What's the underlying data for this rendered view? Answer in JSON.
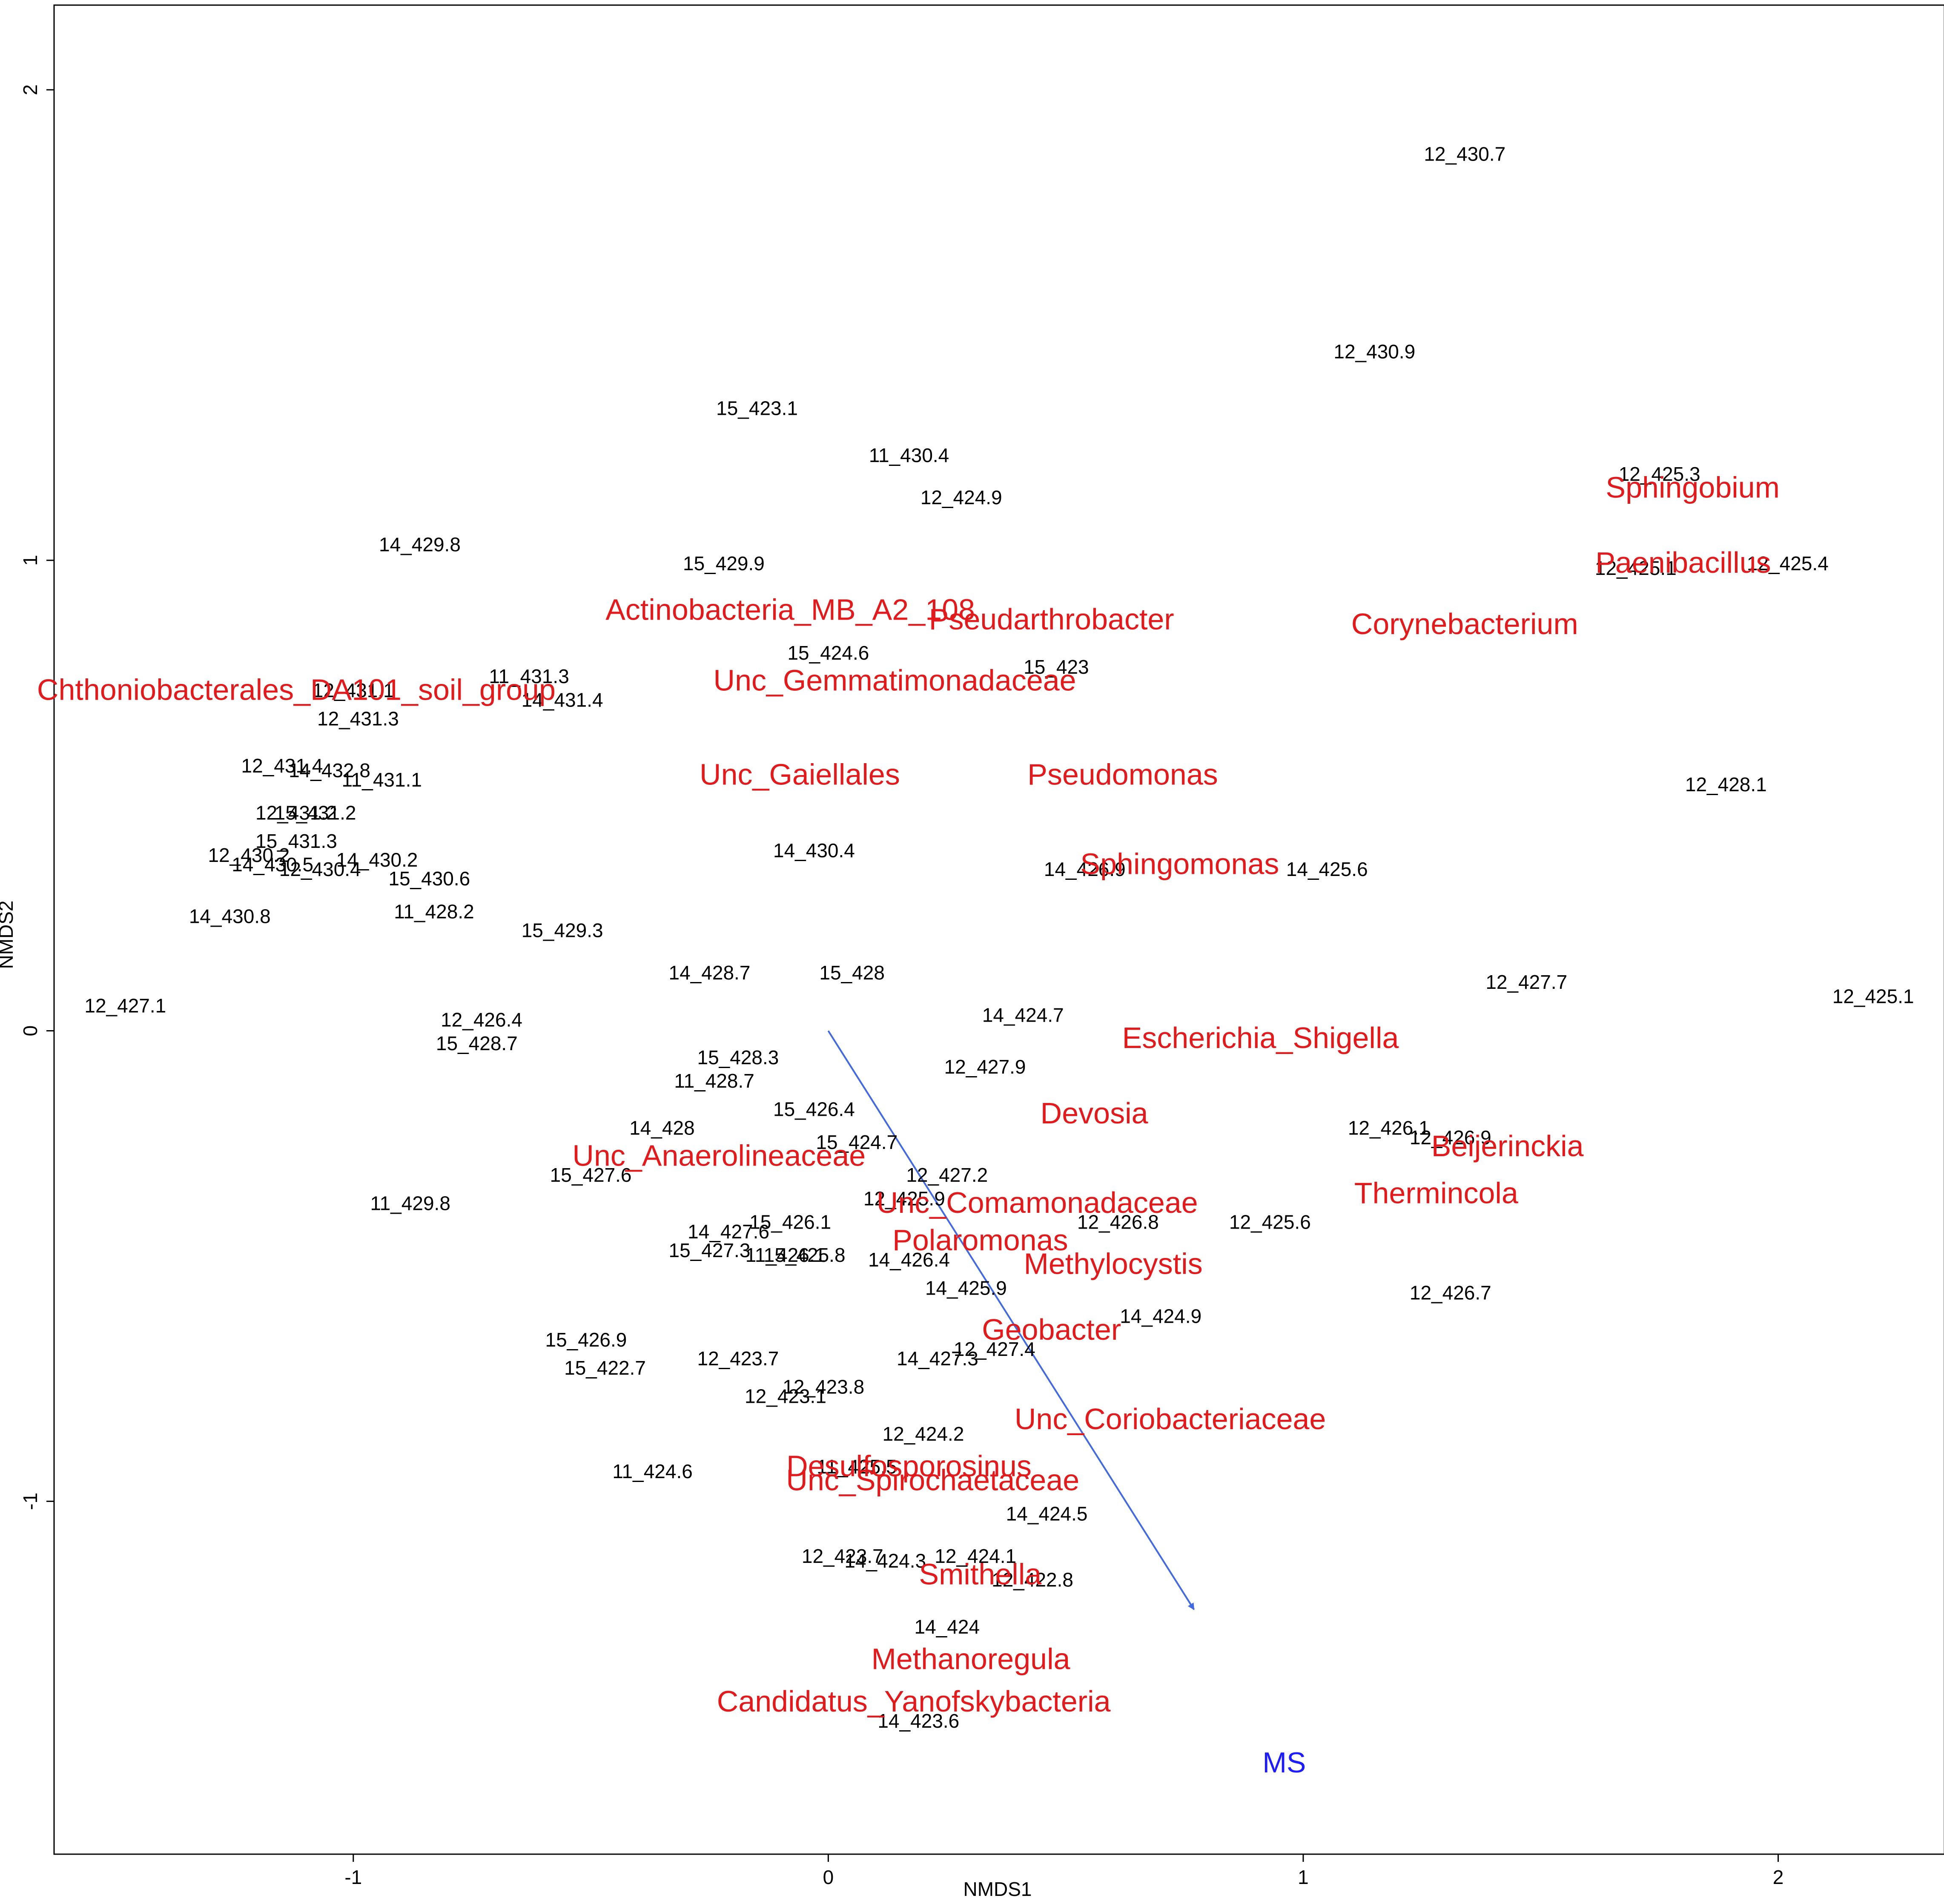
{
  "chart_data": {
    "type": "scatter",
    "xlabel": "NMDS1",
    "ylabel": "NMDS2",
    "xlim": [
      -1.63,
      2.35
    ],
    "ylim": [
      -1.75,
      2.18
    ],
    "xticks": [
      -1,
      0,
      1,
      2
    ],
    "yticks": [
      -1,
      0,
      1,
      2
    ],
    "grid": false,
    "colors": {
      "samples": "#000000",
      "taxa": "#e31a1c",
      "vector": "#4169e1",
      "vector_label": "#1c1cff",
      "frame": "#000000"
    },
    "samples": [
      {
        "label": "12_430.7",
        "x": 1.34,
        "y": 1.86
      },
      {
        "label": "12_430.9",
        "x": 1.15,
        "y": 1.44
      },
      {
        "label": "15_423.1",
        "x": -0.15,
        "y": 1.32
      },
      {
        "label": "11_430.4",
        "x": 0.17,
        "y": 1.22
      },
      {
        "label": "12_424.9",
        "x": 0.28,
        "y": 1.13
      },
      {
        "label": "12_425.3",
        "x": 1.75,
        "y": 1.18
      },
      {
        "label": "12_425.1",
        "x": 1.7,
        "y": 0.98
      },
      {
        "label": "12_425.4",
        "x": 2.02,
        "y": 0.99
      },
      {
        "label": "14_429.8",
        "x": -0.86,
        "y": 1.03
      },
      {
        "label": "15_429.9",
        "x": -0.22,
        "y": 0.99
      },
      {
        "label": "15_424.6",
        "x": 0.0,
        "y": 0.8
      },
      {
        "label": "15_423",
        "x": 0.48,
        "y": 0.77
      },
      {
        "label": "11_431.3",
        "x": -0.63,
        "y": 0.75
      },
      {
        "label": "14_431.4",
        "x": -0.56,
        "y": 0.7
      },
      {
        "label": "12_431.1",
        "x": -1.0,
        "y": 0.72
      },
      {
        "label": "12_431.3",
        "x": -0.99,
        "y": 0.66
      },
      {
        "label": "12_431.4",
        "x": -1.15,
        "y": 0.56
      },
      {
        "label": "14_432.8",
        "x": -1.05,
        "y": 0.55
      },
      {
        "label": "11_431.1",
        "x": -0.94,
        "y": 0.53
      },
      {
        "label": "12_428.1",
        "x": 1.89,
        "y": 0.52
      },
      {
        "label": "12_431.2",
        "x": -1.12,
        "y": 0.46
      },
      {
        "label": "15_431.2",
        "x": -1.08,
        "y": 0.46
      },
      {
        "label": "15_431.3",
        "x": -1.12,
        "y": 0.4
      },
      {
        "label": "12_430.2",
        "x": -1.22,
        "y": 0.37
      },
      {
        "label": "14_430.5",
        "x": -1.17,
        "y": 0.35
      },
      {
        "label": "12_430.4",
        "x": -1.07,
        "y": 0.34
      },
      {
        "label": "14_430.2",
        "x": -0.95,
        "y": 0.36
      },
      {
        "label": "15_430.6",
        "x": -0.84,
        "y": 0.32
      },
      {
        "label": "14_430.4",
        "x": -0.03,
        "y": 0.38
      },
      {
        "label": "14_426.9",
        "x": 0.54,
        "y": 0.34
      },
      {
        "label": "14_425.6",
        "x": 1.05,
        "y": 0.34
      },
      {
        "label": "14_430.8",
        "x": -1.26,
        "y": 0.24
      },
      {
        "label": "11_428.2",
        "x": -0.83,
        "y": 0.25
      },
      {
        "label": "15_429.3",
        "x": -0.56,
        "y": 0.21
      },
      {
        "label": "14_428.7",
        "x": -0.25,
        "y": 0.12
      },
      {
        "label": "15_428",
        "x": 0.05,
        "y": 0.12
      },
      {
        "label": "12_427.7",
        "x": 1.47,
        "y": 0.1
      },
      {
        "label": "12_427.1",
        "x": -1.48,
        "y": 0.05
      },
      {
        "label": "12_425.1",
        "x": 2.2,
        "y": 0.07
      },
      {
        "label": "14_424.7",
        "x": 0.41,
        "y": 0.03
      },
      {
        "label": "12_426.4",
        "x": -0.73,
        "y": 0.02
      },
      {
        "label": "15_428.7",
        "x": -0.74,
        "y": -0.03
      },
      {
        "label": "15_428.3",
        "x": -0.19,
        "y": -0.06
      },
      {
        "label": "11_428.7",
        "x": -0.24,
        "y": -0.11
      },
      {
        "label": "12_427.9",
        "x": 0.33,
        "y": -0.08
      },
      {
        "label": "15_426.4",
        "x": -0.03,
        "y": -0.17
      },
      {
        "label": "14_428",
        "x": -0.35,
        "y": -0.21
      },
      {
        "label": "15_424.7",
        "x": 0.06,
        "y": -0.24
      },
      {
        "label": "12_426.1",
        "x": 1.18,
        "y": -0.21
      },
      {
        "label": "12_426.9",
        "x": 1.31,
        "y": -0.23
      },
      {
        "label": "15_427.6",
        "x": -0.5,
        "y": -0.31
      },
      {
        "label": "12_427.2",
        "x": 0.25,
        "y": -0.31
      },
      {
        "label": "11_429.8",
        "x": -0.88,
        "y": -0.37
      },
      {
        "label": "12_425.9",
        "x": 0.16,
        "y": -0.36
      },
      {
        "label": "15_426.1",
        "x": -0.08,
        "y": -0.41
      },
      {
        "label": "12_426.8",
        "x": 0.61,
        "y": -0.41
      },
      {
        "label": "12_425.6",
        "x": 0.93,
        "y": -0.41
      },
      {
        "label": "14_427.6",
        "x": -0.21,
        "y": -0.43
      },
      {
        "label": "15_427.3",
        "x": -0.25,
        "y": -0.47
      },
      {
        "label": "11_426.1",
        "x": -0.09,
        "y": -0.48
      },
      {
        "label": "15_425.8",
        "x": -0.05,
        "y": -0.48
      },
      {
        "label": "14_426.4",
        "x": 0.17,
        "y": -0.49
      },
      {
        "label": "14_425.9",
        "x": 0.29,
        "y": -0.55
      },
      {
        "label": "12_426.7",
        "x": 1.31,
        "y": -0.56
      },
      {
        "label": "14_424.9",
        "x": 0.7,
        "y": -0.61
      },
      {
        "label": "15_426.9",
        "x": -0.51,
        "y": -0.66
      },
      {
        "label": "12_427.4",
        "x": 0.35,
        "y": -0.68
      },
      {
        "label": "12_423.7",
        "x": -0.19,
        "y": -0.7
      },
      {
        "label": "14_427.3",
        "x": 0.23,
        "y": -0.7
      },
      {
        "label": "15_422.7",
        "x": -0.47,
        "y": -0.72
      },
      {
        "label": "12_423.8",
        "x": -0.01,
        "y": -0.76
      },
      {
        "label": "12_423.1",
        "x": -0.09,
        "y": -0.78
      },
      {
        "label": "12_424.2",
        "x": 0.2,
        "y": -0.86
      },
      {
        "label": "11_424.6",
        "x": -0.37,
        "y": -0.94
      },
      {
        "label": "11_425.5",
        "x": 0.06,
        "y": -0.93
      },
      {
        "label": "14_424.5",
        "x": 0.46,
        "y": -1.03
      },
      {
        "label": "12_423.7",
        "x": 0.03,
        "y": -1.12
      },
      {
        "label": "14_424.3",
        "x": 0.12,
        "y": -1.13
      },
      {
        "label": "12_424.1",
        "x": 0.31,
        "y": -1.12
      },
      {
        "label": "12_422.8",
        "x": 0.43,
        "y": -1.17
      },
      {
        "label": "14_424",
        "x": 0.25,
        "y": -1.27
      },
      {
        "label": "14_423.6",
        "x": 0.19,
        "y": -1.47
      }
    ],
    "taxa": [
      {
        "label": "Sphingobium",
        "x": 1.82,
        "y": 1.15
      },
      {
        "label": "Paenibacillus",
        "x": 1.8,
        "y": 0.99
      },
      {
        "label": "Corynebacterium",
        "x": 1.34,
        "y": 0.86
      },
      {
        "label": "Actinobacteria_MB_A2_108",
        "x": -0.08,
        "y": 0.89
      },
      {
        "label": "Pseudarthrobacter",
        "x": 0.47,
        "y": 0.87
      },
      {
        "label": "Unc_Gemmatimonadaceae",
        "x": 0.14,
        "y": 0.74
      },
      {
        "label": "Chthoniobacterales_DA101_soil_group",
        "x": -1.12,
        "y": 0.72
      },
      {
        "label": "Unc_Gaiellales",
        "x": -0.06,
        "y": 0.54
      },
      {
        "label": "Pseudomonas",
        "x": 0.62,
        "y": 0.54
      },
      {
        "label": "Sphingomonas",
        "x": 0.74,
        "y": 0.35
      },
      {
        "label": "Escherichia_Shigella",
        "x": 0.91,
        "y": -0.02
      },
      {
        "label": "Devosia",
        "x": 0.56,
        "y": -0.18
      },
      {
        "label": "Beijerinckia",
        "x": 1.43,
        "y": -0.25
      },
      {
        "label": "Unc_Anaerolineaceae",
        "x": -0.23,
        "y": -0.27
      },
      {
        "label": "Thermincola",
        "x": 1.28,
        "y": -0.35
      },
      {
        "label": "Unc_Comamonadaceae",
        "x": 0.44,
        "y": -0.37
      },
      {
        "label": "Polaromonas",
        "x": 0.32,
        "y": -0.45
      },
      {
        "label": "Methylocystis",
        "x": 0.6,
        "y": -0.5
      },
      {
        "label": "Geobacter",
        "x": 0.47,
        "y": -0.64
      },
      {
        "label": "Unc_Coriobacteriaceae",
        "x": 0.72,
        "y": -0.83
      },
      {
        "label": "Desulfosporosinus",
        "x": 0.17,
        "y": -0.93
      },
      {
        "label": "Unc_Spirochaetaceae",
        "x": 0.22,
        "y": -0.96
      },
      {
        "label": "Smithella",
        "x": 0.32,
        "y": -1.16
      },
      {
        "label": "Methanoregula",
        "x": 0.3,
        "y": -1.34
      },
      {
        "label": "Candidatus_Yanofskybacteria",
        "x": 0.18,
        "y": -1.43
      }
    ],
    "vectors": [
      {
        "label": "MS",
        "x0": 0,
        "y0": 0,
        "x1": 0.77,
        "y1": -1.23,
        "label_x": 0.96,
        "label_y": -1.56
      }
    ]
  }
}
